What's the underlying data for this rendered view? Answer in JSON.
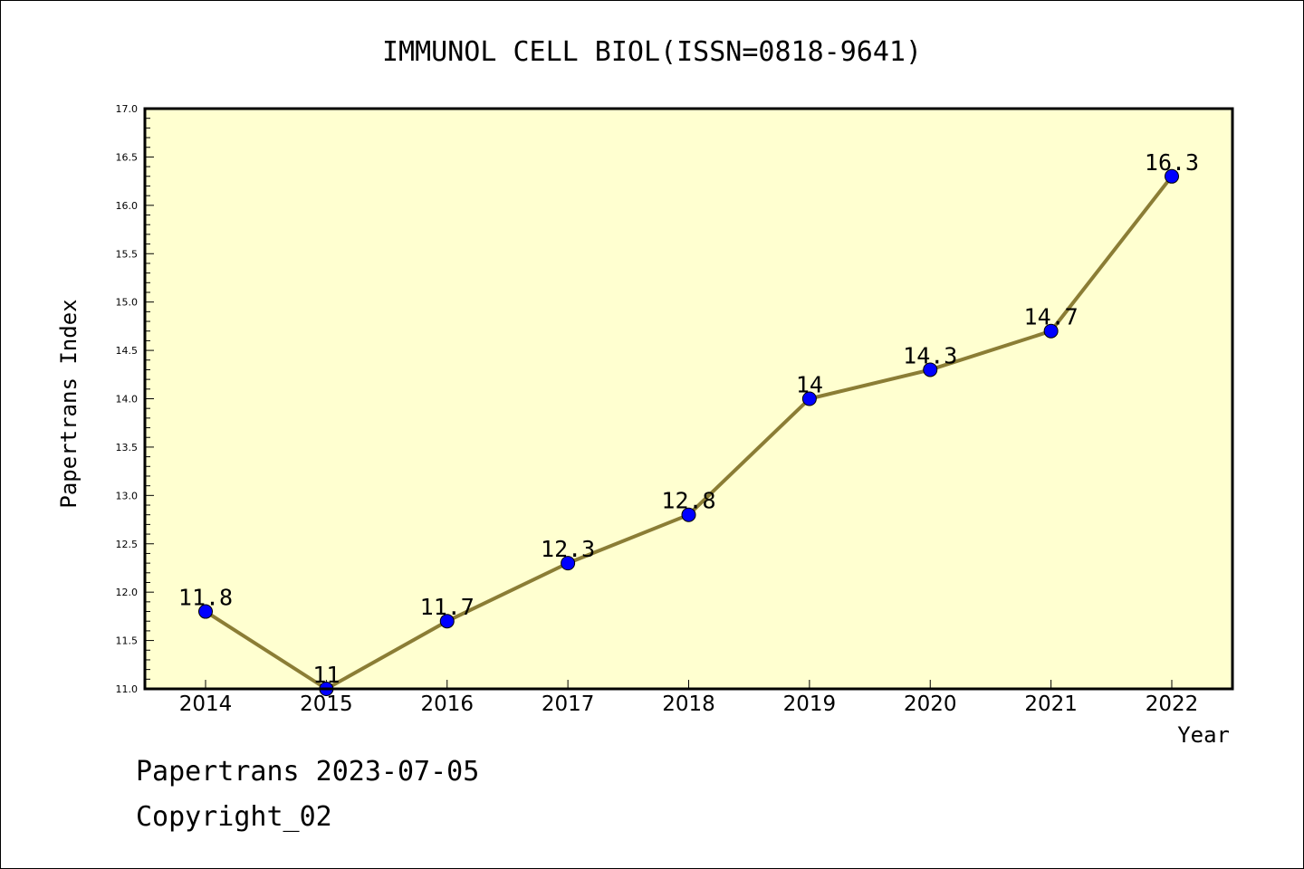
{
  "chart_data": {
    "type": "line",
    "title": "IMMUNOL CELL BIOL(ISSN=0818-9641)",
    "xlabel": "Year",
    "ylabel": "Papertrans Index",
    "categories": [
      "2014",
      "2015",
      "2016",
      "2017",
      "2018",
      "2019",
      "2020",
      "2021",
      "2022"
    ],
    "values": [
      11.8,
      11.0,
      11.7,
      12.3,
      12.8,
      14.0,
      14.3,
      14.7,
      16.3
    ],
    "data_labels": [
      "11.8",
      "11",
      "11.7",
      "12.3",
      "12.8",
      "14",
      "14.3",
      "14.7",
      "16.3"
    ],
    "ylim": [
      11.0,
      17.0
    ],
    "yticks": [
      "11.0",
      "11.5",
      "12.0",
      "12.5",
      "13.0",
      "13.5",
      "14.0",
      "14.5",
      "15.0",
      "15.5",
      "16.0",
      "16.5",
      "17.0"
    ],
    "grid": false,
    "legend": "none",
    "colors": {
      "plot_background": "#ffffd0",
      "line": "#8b7d35",
      "marker": "#0000ff"
    }
  },
  "footer": {
    "line1": "Papertrans 2023-07-05",
    "line2": "Copyright_02"
  }
}
